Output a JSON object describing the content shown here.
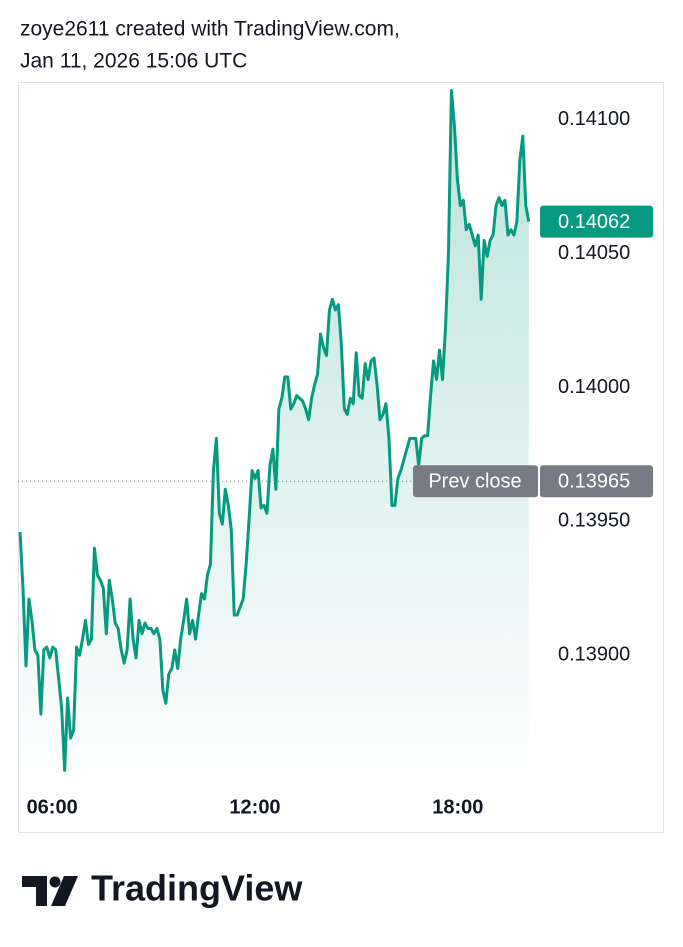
{
  "chart_data": {
    "type": "line",
    "title": "zoye2611 created with TradingView.com,",
    "subtitle": "Jan 11, 2026 15:06 UTC",
    "brand": "TradingView",
    "color": "#089981",
    "grid": false,
    "xlim": [
      4.99,
      20.43
    ],
    "ylim": [
      0.1385,
      0.14114
    ],
    "xticks": [
      {
        "value": 6,
        "label": "06:00"
      },
      {
        "value": 12,
        "label": "12:00"
      },
      {
        "value": 18,
        "label": "18:00"
      }
    ],
    "yticks": [
      {
        "value": 0.139,
        "label": "0.13900"
      },
      {
        "value": 0.1395,
        "label": "0.13950"
      },
      {
        "value": 0.14,
        "label": "0.14000"
      },
      {
        "value": 0.1405,
        "label": "0.14050"
      },
      {
        "value": 0.141,
        "label": "0.14100"
      }
    ],
    "prev_close": {
      "label": "Prev close",
      "value": 0.13965
    },
    "last_price": 0.14062,
    "x": [
      5.05,
      5.138,
      5.226,
      5.314,
      5.402,
      5.49,
      5.578,
      5.666,
      5.754,
      5.842,
      5.93,
      6.018,
      6.106,
      6.194,
      6.282,
      6.37,
      6.458,
      6.546,
      6.634,
      6.722,
      6.81,
      6.898,
      6.986,
      7.074,
      7.162,
      7.25,
      7.338,
      7.426,
      7.514,
      7.602,
      7.69,
      7.778,
      7.866,
      7.954,
      8.042,
      8.13,
      8.218,
      8.306,
      8.394,
      8.482,
      8.57,
      8.658,
      8.746,
      8.834,
      8.922,
      9.01,
      9.098,
      9.186,
      9.274,
      9.362,
      9.45,
      9.538,
      9.626,
      9.714,
      9.802,
      9.89,
      9.978,
      10.066,
      10.154,
      10.242,
      10.33,
      10.418,
      10.506,
      10.594,
      10.682,
      10.77,
      10.858,
      10.946,
      11.034,
      11.122,
      11.21,
      11.298,
      11.386,
      11.474,
      11.562,
      11.65,
      11.738,
      11.826,
      11.914,
      12.002,
      12.09,
      12.178,
      12.266,
      12.354,
      12.442,
      12.53,
      12.618,
      12.706,
      12.794,
      12.882,
      12.97,
      13.058,
      13.146,
      13.234,
      13.322,
      13.41,
      13.498,
      13.586,
      13.674,
      13.762,
      13.85,
      13.938,
      14.026,
      14.114,
      14.202,
      14.29,
      14.378,
      14.466,
      14.554,
      14.642,
      14.73,
      14.818,
      14.906,
      14.994,
      15.082,
      15.17,
      15.258,
      15.346,
      15.434,
      15.522,
      15.61,
      15.698,
      15.786,
      15.874,
      15.962,
      16.05,
      16.138,
      16.226,
      16.314,
      16.402,
      16.49,
      16.578,
      16.666,
      16.754,
      16.842,
      16.93,
      17.018,
      17.106,
      17.194,
      17.282,
      17.37,
      17.458,
      17.546,
      17.634,
      17.722,
      17.81,
      17.898,
      17.986,
      18.074,
      18.162,
      18.25,
      18.338,
      18.426,
      18.514,
      18.602,
      18.69,
      18.778,
      18.866,
      18.954,
      19.042,
      19.13,
      19.218,
      19.306,
      19.394,
      19.482,
      19.57,
      19.658,
      19.746,
      19.834,
      19.922,
      20.01,
      20.098
    ],
    "values": [
      0.13946,
      0.13925,
      0.13896,
      0.13921,
      0.13913,
      0.13902,
      0.139,
      0.13878,
      0.13902,
      0.13903,
      0.13899,
      0.13903,
      0.13902,
      0.13891,
      0.1388,
      0.13857,
      0.13884,
      0.13869,
      0.13872,
      0.13903,
      0.139,
      0.13906,
      0.13913,
      0.13904,
      0.13906,
      0.1394,
      0.1393,
      0.13928,
      0.13925,
      0.13908,
      0.13928,
      0.13921,
      0.13912,
      0.1391,
      0.13902,
      0.13897,
      0.13902,
      0.13921,
      0.13906,
      0.13899,
      0.13913,
      0.13908,
      0.13912,
      0.1391,
      0.1391,
      0.13908,
      0.1391,
      0.13906,
      0.13887,
      0.13882,
      0.13893,
      0.13895,
      0.13902,
      0.13895,
      0.13906,
      0.13913,
      0.13921,
      0.13908,
      0.13913,
      0.13906,
      0.13915,
      0.13923,
      0.13921,
      0.1393,
      0.13934,
      0.13969,
      0.13981,
      0.13953,
      0.13949,
      0.13962,
      0.13956,
      0.13947,
      0.13915,
      0.13915,
      0.13918,
      0.13921,
      0.13934,
      0.13951,
      0.13969,
      0.13966,
      0.13969,
      0.13955,
      0.13956,
      0.13953,
      0.13971,
      0.13977,
      0.13962,
      0.13992,
      0.13996,
      0.14004,
      0.14004,
      0.13992,
      0.13994,
      0.13997,
      0.13996,
      0.13995,
      0.13992,
      0.13988,
      0.13996,
      0.14001,
      0.14005,
      0.1402,
      0.14015,
      0.14012,
      0.14029,
      0.14033,
      0.14029,
      0.14031,
      0.14016,
      0.13992,
      0.1399,
      0.13996,
      0.13994,
      0.14013,
      0.13997,
      0.13996,
      0.14009,
      0.14003,
      0.1401,
      0.14011,
      0.14001,
      0.13988,
      0.1399,
      0.13994,
      0.13981,
      0.13956,
      0.13956,
      0.13966,
      0.13969,
      0.13973,
      0.13977,
      0.13981,
      0.13981,
      0.13981,
      0.13971,
      0.13981,
      0.13982,
      0.13982,
      0.13997,
      0.1401,
      0.14003,
      0.14014,
      0.14003,
      0.14022,
      0.1405,
      0.14111,
      0.14098,
      0.14078,
      0.14068,
      0.1407,
      0.14059,
      0.14061,
      0.14057,
      0.14053,
      0.14057,
      0.14033,
      0.14055,
      0.14049,
      0.14055,
      0.14057,
      0.14068,
      0.14071,
      0.14068,
      0.1407,
      0.14057,
      0.14059,
      0.14057,
      0.14062,
      0.14085,
      0.14094,
      0.14068,
      0.14062
    ]
  }
}
